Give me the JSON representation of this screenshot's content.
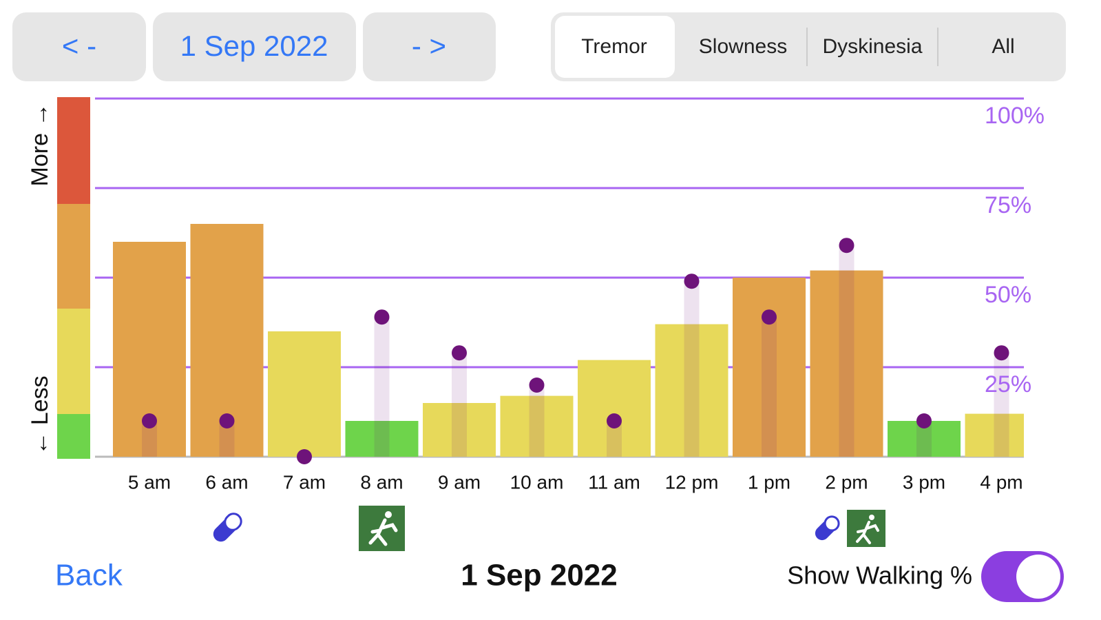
{
  "header": {
    "prev": "< -",
    "date": "1 Sep 2022",
    "next": "- >",
    "tabs": [
      "Tremor",
      "Slowness",
      "Dyskinesia",
      "All"
    ]
  },
  "chart_data": {
    "type": "bar",
    "y_label_top": "More →",
    "y_label_bottom": "← Less",
    "categories": [
      "5 am",
      "6 am",
      "7 am",
      "8 am",
      "9 am",
      "10 am",
      "11 am",
      "12 pm",
      "1 pm",
      "2 pm",
      "3 pm",
      "4 pm"
    ],
    "series": [
      {
        "type": "bar",
        "colors": [
          "#e2a24a",
          "#e2a24a",
          "#e7d95a",
          "#6ed44b",
          "#e7d95a",
          "#e7d95a",
          "#e7d95a",
          "#e7d95a",
          "#e2a24a",
          "#e2a24a",
          "#6ed44b",
          "#e7d95a"
        ],
        "values": [
          60,
          65,
          35,
          10,
          15,
          17,
          27,
          37,
          50,
          52,
          10,
          12
        ]
      },
      {
        "type": "scatter",
        "color": "#6e137a",
        "values": [
          10,
          10,
          0,
          39,
          29,
          20,
          10,
          49,
          39,
          59,
          10,
          29
        ]
      }
    ],
    "ylim": [
      0,
      100
    ],
    "yticks": [
      {
        "value": 25,
        "label": "25%"
      },
      {
        "value": 50,
        "label": "50%"
      },
      {
        "value": 75,
        "label": "75%"
      },
      {
        "value": 100,
        "label": "100%"
      }
    ],
    "grid": true,
    "grid_color": "#a865f2"
  },
  "footer": {
    "back": "Back",
    "date": "1 Sep 2022",
    "toggle_label": "Show Walking %"
  }
}
